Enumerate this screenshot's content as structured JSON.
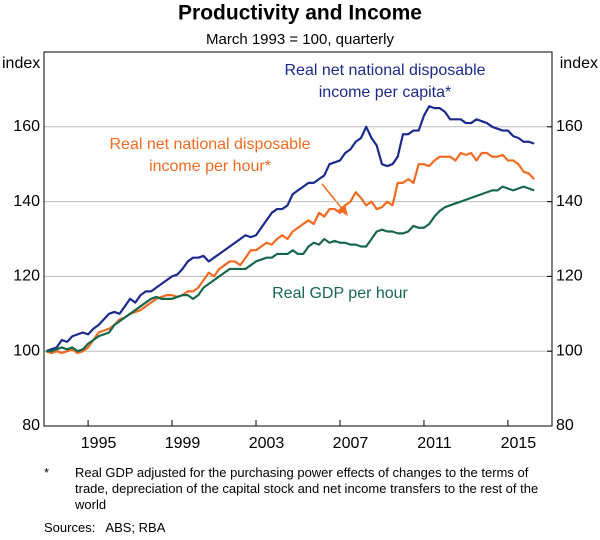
{
  "chart_data": {
    "type": "line",
    "title": "Productivity and Income",
    "subtitle": "March 1993 = 100, quarterly",
    "y_label": "index",
    "y2_label": "index",
    "xlim": [
      1992.9,
      2017.1
    ],
    "xticks": [
      1995,
      1999,
      2003,
      2007,
      2011,
      2015
    ],
    "ylim": [
      80,
      180
    ],
    "yticks": [
      80,
      100,
      120,
      140,
      160
    ],
    "y2lim": [
      80,
      180
    ],
    "y2ticks": [
      80,
      100,
      120,
      140,
      160
    ],
    "grid": true,
    "x": [
      1993,
      1993.25,
      1993.5,
      1993.75,
      1994,
      1994.25,
      1994.5,
      1994.75,
      1995,
      1995.25,
      1995.5,
      1995.75,
      1996,
      1996.25,
      1996.5,
      1996.75,
      1997,
      1997.25,
      1997.5,
      1997.75,
      1998,
      1998.25,
      1998.5,
      1998.75,
      1999,
      1999.25,
      1999.5,
      1999.75,
      2000,
      2000.25,
      2000.5,
      2000.75,
      2001,
      2001.25,
      2001.5,
      2001.75,
      2002,
      2002.25,
      2002.5,
      2002.75,
      2003,
      2003.25,
      2003.5,
      2003.75,
      2004,
      2004.25,
      2004.5,
      2004.75,
      2005,
      2005.25,
      2005.5,
      2005.75,
      2006,
      2006.25,
      2006.5,
      2006.75,
      2007,
      2007.25,
      2007.5,
      2007.75,
      2008,
      2008.25,
      2008.5,
      2008.75,
      2009,
      2009.25,
      2009.5,
      2009.75,
      2010,
      2010.25,
      2010.5,
      2010.75,
      2011,
      2011.25,
      2011.5,
      2011.75,
      2012,
      2012.25,
      2012.5,
      2012.75,
      2013,
      2013.25,
      2013.5,
      2013.75,
      2014,
      2014.25,
      2014.5,
      2014.75,
      2015,
      2015.25,
      2015.5,
      2015.75,
      2016,
      2016.25
    ],
    "series": [
      {
        "name": "Real net national disposable income per capita*",
        "color": "#1c2a8e",
        "values": [
          100,
          100.5,
          101,
          103,
          102.5,
          104,
          104.5,
          105,
          104.5,
          106,
          107,
          108.5,
          110,
          110.5,
          110,
          112,
          114,
          113,
          115,
          116,
          116,
          117,
          118,
          119,
          120,
          120.5,
          122,
          124,
          125,
          125,
          125.5,
          124,
          125,
          126,
          127,
          128,
          129,
          130,
          131,
          130.5,
          131,
          133,
          135,
          137,
          138,
          138,
          139,
          142,
          143,
          144,
          145,
          145,
          146,
          147,
          150,
          150.5,
          151,
          153,
          154,
          156,
          157,
          160,
          157,
          155,
          150,
          149.5,
          150,
          152,
          158,
          158,
          159,
          159,
          163,
          165.5,
          165,
          165,
          164,
          162,
          162,
          162,
          161,
          161,
          162,
          161.5,
          161,
          160,
          159.5,
          159,
          159,
          157.5,
          157,
          156,
          156,
          155.5
        ]
      },
      {
        "name": "Real net national disposable income per hour*",
        "color": "#f26b21",
        "values": [
          100,
          99.5,
          100,
          99.5,
          100,
          100.5,
          99.5,
          100,
          101,
          103,
          105,
          105.5,
          106,
          107,
          108.5,
          109,
          110,
          110.5,
          111,
          112,
          113,
          114,
          114.5,
          115,
          115,
          114.5,
          115,
          116,
          116,
          117,
          119,
          121,
          120,
          122,
          123,
          124,
          124,
          123,
          125,
          127,
          127,
          128,
          129,
          128.5,
          130,
          131,
          130,
          132,
          133,
          134,
          135,
          134,
          137,
          136,
          138,
          138,
          137,
          139,
          140,
          142.5,
          141,
          139,
          140,
          138,
          138.5,
          140,
          139,
          145,
          145,
          146,
          145,
          150,
          150,
          149.5,
          151,
          152,
          152,
          152,
          151,
          153,
          152.5,
          153,
          151,
          153,
          153,
          152,
          152,
          152.5,
          151,
          151,
          150,
          148,
          147.5,
          146
        ]
      },
      {
        "name": "Real GDP per hour",
        "color": "#17684a",
        "values": [
          100,
          100,
          100.5,
          101,
          100.5,
          101,
          100,
          100.5,
          102,
          103,
          104,
          104.5,
          105,
          107,
          108,
          109,
          110,
          111,
          112,
          113,
          114,
          114.5,
          114,
          114,
          114,
          114.5,
          115,
          115,
          114,
          115,
          117,
          118,
          119,
          120,
          121,
          122,
          122,
          122,
          122,
          123,
          124,
          124.5,
          125,
          125,
          126,
          126,
          126,
          127,
          126,
          126,
          128,
          129,
          128.5,
          130,
          129,
          129.5,
          129,
          129,
          128.5,
          128.5,
          128,
          128,
          130,
          132,
          132.5,
          132,
          132,
          131.5,
          131.5,
          132,
          133.5,
          133,
          133,
          134,
          136,
          137.5,
          138.5,
          139,
          139.5,
          140,
          140.5,
          141,
          141.5,
          142,
          142.5,
          143,
          143,
          144,
          143.5,
          143,
          143.5,
          144,
          143.5,
          143
        ]
      }
    ],
    "footnote_marker": "*",
    "footnote": "Real GDP adjusted for the purchasing power effects of changes to the terms of trade, depreciation of the capital stock and net income transfers to the rest of the world",
    "sources": "Sources:   ABS; RBA"
  }
}
